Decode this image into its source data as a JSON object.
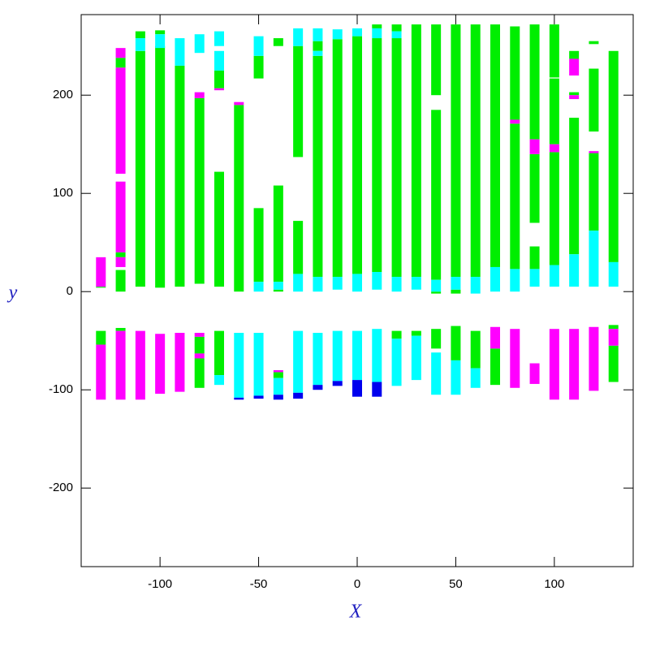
{
  "chart_data": {
    "type": "segments",
    "xlabel": "X",
    "ylabel": "y",
    "xlim": [
      -140,
      140
    ],
    "ylim": [
      -280,
      282
    ],
    "xticks": [
      -100,
      -50,
      0,
      50,
      100
    ],
    "yticks": [
      -200,
      -100,
      0,
      100,
      200
    ],
    "series": [
      {
        "color": "#00ee00",
        "segments": [
          [
            -130,
            5,
            4
          ],
          [
            -130,
            -40,
            -54
          ],
          [
            -120,
            238,
            228
          ],
          [
            -120,
            40,
            35
          ],
          [
            -120,
            22,
            0
          ],
          [
            -120,
            -37,
            -40
          ],
          [
            -110,
            265,
            258
          ],
          [
            -110,
            245,
            5
          ],
          [
            -100,
            266,
            262
          ],
          [
            -100,
            250,
            4
          ],
          [
            -90,
            230,
            5
          ],
          [
            -80,
            197,
            8
          ],
          [
            -80,
            -46,
            -63
          ],
          [
            -80,
            -68,
            -98
          ],
          [
            -70,
            225,
            207
          ],
          [
            -70,
            122,
            5
          ],
          [
            -70,
            -40,
            -85
          ],
          [
            -60,
            190,
            0
          ],
          [
            -50,
            240,
            217
          ],
          [
            -50,
            85,
            10
          ],
          [
            -40,
            258,
            250
          ],
          [
            -40,
            108,
            10
          ],
          [
            -40,
            2,
            0
          ],
          [
            -40,
            -82,
            -88
          ],
          [
            -30,
            250,
            137
          ],
          [
            -30,
            72,
            18
          ],
          [
            -20,
            255,
            245
          ],
          [
            -20,
            240,
            15
          ],
          [
            -10,
            257,
            15
          ],
          [
            0,
            260,
            18
          ],
          [
            10,
            272,
            268
          ],
          [
            10,
            258,
            20
          ],
          [
            20,
            272,
            265
          ],
          [
            20,
            258,
            15
          ],
          [
            20,
            -40,
            -48
          ],
          [
            30,
            272,
            15
          ],
          [
            30,
            -40,
            -45
          ],
          [
            40,
            272,
            200
          ],
          [
            40,
            185,
            12
          ],
          [
            40,
            0,
            -2
          ],
          [
            40,
            -38,
            -58
          ],
          [
            50,
            272,
            15
          ],
          [
            50,
            2,
            -2
          ],
          [
            50,
            -35,
            -70
          ],
          [
            60,
            272,
            15
          ],
          [
            60,
            -40,
            -78
          ],
          [
            70,
            272,
            25
          ],
          [
            70,
            -58,
            -95
          ],
          [
            80,
            270,
            175
          ],
          [
            80,
            171,
            23
          ],
          [
            90,
            272,
            155
          ],
          [
            90,
            140,
            70
          ],
          [
            90,
            46,
            23
          ],
          [
            100,
            272,
            218
          ],
          [
            100,
            217,
            150
          ],
          [
            100,
            142,
            27
          ],
          [
            110,
            245,
            237
          ],
          [
            110,
            203,
            200
          ],
          [
            110,
            177,
            38
          ],
          [
            120,
            255,
            252
          ],
          [
            120,
            227,
            163
          ],
          [
            120,
            141,
            62
          ],
          [
            130,
            245,
            30
          ],
          [
            130,
            -34,
            -38
          ],
          [
            130,
            -55,
            -92
          ]
        ]
      },
      {
        "color": "#00ffff",
        "segments": [
          [
            -110,
            258,
            245
          ],
          [
            -100,
            262,
            248
          ],
          [
            -90,
            258,
            230
          ],
          [
            -80,
            262,
            243
          ],
          [
            -70,
            265,
            250
          ],
          [
            -70,
            245,
            225
          ],
          [
            -70,
            -85,
            -95
          ],
          [
            -60,
            -42,
            -108
          ],
          [
            -50,
            260,
            240
          ],
          [
            -50,
            10,
            0
          ],
          [
            -50,
            -42,
            -106
          ],
          [
            -40,
            10,
            2
          ],
          [
            -40,
            -88,
            -105
          ],
          [
            -30,
            268,
            250
          ],
          [
            -30,
            18,
            0
          ],
          [
            -30,
            -40,
            -103
          ],
          [
            -20,
            268,
            255
          ],
          [
            -20,
            245,
            240
          ],
          [
            -20,
            15,
            0
          ],
          [
            -20,
            -42,
            -95
          ],
          [
            -10,
            267,
            257
          ],
          [
            -10,
            15,
            2
          ],
          [
            -10,
            -40,
            -91
          ],
          [
            0,
            268,
            260
          ],
          [
            0,
            18,
            0
          ],
          [
            0,
            -40,
            -90
          ],
          [
            10,
            268,
            258
          ],
          [
            10,
            20,
            2
          ],
          [
            10,
            -38,
            -92
          ],
          [
            20,
            265,
            258
          ],
          [
            20,
            15,
            0
          ],
          [
            20,
            -48,
            -96
          ],
          [
            30,
            15,
            2
          ],
          [
            30,
            -45,
            -90
          ],
          [
            40,
            12,
            0
          ],
          [
            40,
            -62,
            -105
          ],
          [
            50,
            15,
            2
          ],
          [
            50,
            -70,
            -105
          ],
          [
            60,
            15,
            -2
          ],
          [
            60,
            -78,
            -98
          ],
          [
            70,
            25,
            0
          ],
          [
            80,
            23,
            0
          ],
          [
            90,
            23,
            5
          ],
          [
            100,
            27,
            5
          ],
          [
            110,
            38,
            5
          ],
          [
            120,
            62,
            5
          ],
          [
            130,
            30,
            5
          ]
        ]
      },
      {
        "color": "#ff00ff",
        "segments": [
          [
            -130,
            35,
            5
          ],
          [
            -130,
            -54,
            -110
          ],
          [
            -120,
            248,
            238
          ],
          [
            -120,
            228,
            120
          ],
          [
            -120,
            112,
            40
          ],
          [
            -120,
            35,
            25
          ],
          [
            -120,
            -40,
            -110
          ],
          [
            -110,
            -40,
            -110
          ],
          [
            -100,
            -43,
            -104
          ],
          [
            -90,
            -42,
            -102
          ],
          [
            -80,
            203,
            197
          ],
          [
            -80,
            -42,
            -46
          ],
          [
            -80,
            -63,
            -68
          ],
          [
            -70,
            207,
            205
          ],
          [
            -60,
            193,
            190
          ],
          [
            -40,
            -80,
            -82
          ],
          [
            70,
            -36,
            -58
          ],
          [
            80,
            175,
            171
          ],
          [
            80,
            -38,
            -98
          ],
          [
            90,
            155,
            140
          ],
          [
            90,
            -73,
            -94
          ],
          [
            100,
            150,
            142
          ],
          [
            100,
            -38,
            -110
          ],
          [
            110,
            237,
            220
          ],
          [
            110,
            200,
            196
          ],
          [
            110,
            -38,
            -110
          ],
          [
            120,
            143,
            141
          ],
          [
            120,
            -36,
            -101
          ],
          [
            130,
            -38,
            -55
          ]
        ]
      },
      {
        "color": "#0000ee",
        "segments": [
          [
            -60,
            -108,
            -110
          ],
          [
            -50,
            -106,
            -109
          ],
          [
            -40,
            -105,
            -110
          ],
          [
            -30,
            -103,
            -109
          ],
          [
            -20,
            -95,
            -100
          ],
          [
            -10,
            -91,
            -96
          ],
          [
            0,
            -90,
            -107
          ],
          [
            10,
            -92,
            -107
          ]
        ]
      }
    ]
  }
}
